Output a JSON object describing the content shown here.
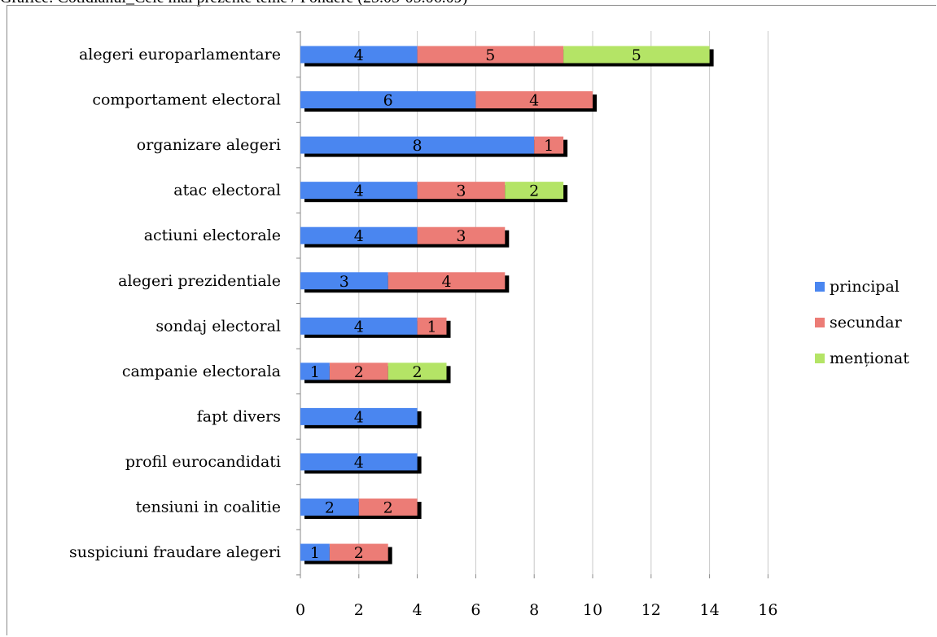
{
  "title": "Grafice: Cotidianul_Cele mai prezente teme / Pondere (25.05-05.06.09)",
  "chart_data": {
    "type": "bar",
    "orientation": "horizontal",
    "stacked": true,
    "categories": [
      "alegeri europarlamentare",
      "comportament electoral",
      "organizare alegeri",
      "atac electoral",
      "actiuni electorale",
      "alegeri prezidentiale",
      "sondaj electoral",
      "campanie electorala",
      "fapt divers",
      "profil eurocandidati",
      "tensiuni in coalitie",
      "suspiciuni fraudare alegeri"
    ],
    "series": [
      {
        "name": "principal",
        "color": "#4a86f0",
        "values": [
          4,
          6,
          8,
          4,
          4,
          3,
          4,
          1,
          4,
          4,
          2,
          1
        ]
      },
      {
        "name": "secundar",
        "color": "#ec7c76",
        "values": [
          5,
          4,
          1,
          3,
          3,
          4,
          1,
          2,
          0,
          0,
          2,
          2
        ]
      },
      {
        "name": "menționat",
        "color": "#b4e466",
        "values": [
          5,
          0,
          0,
          2,
          0,
          0,
          0,
          2,
          0,
          0,
          0,
          0
        ]
      }
    ],
    "xlim": [
      0,
      16
    ],
    "xticks": [
      0,
      2,
      4,
      6,
      8,
      10,
      12,
      14,
      16
    ],
    "grid": true,
    "legend_position": "right"
  }
}
